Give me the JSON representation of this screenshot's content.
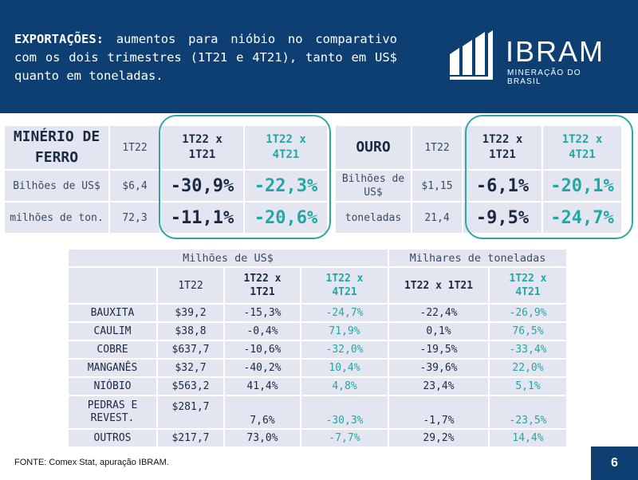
{
  "header": {
    "title_bold": "EXPORTAÇÕES:",
    "title_text": " aumentos para nióbio no comparativo com os dois trimestres (1T21 e 4T21), tanto em US$ quanto em toneladas."
  },
  "logo": {
    "name": "IBRAM",
    "subtitle": "MINERAÇÃO DO BRASIL"
  },
  "iron": {
    "title": "MINÉRIO DE FERRO",
    "col_period": "1T22",
    "col_vs1": "1T22 x 1T21",
    "col_vs2": "1T22 x 4T21",
    "rows": [
      {
        "label": "Bilhões de US$",
        "value": "$6,4",
        "vs1": "-30,9%",
        "vs2": "-22,3%"
      },
      {
        "label": "milhões de ton.",
        "value": "72,3",
        "vs1": "-11,1%",
        "vs2": "-20,6%"
      }
    ]
  },
  "gold": {
    "title": "OURO",
    "col_period": "1T22",
    "col_vs1": "1T22 x 1T21",
    "col_vs2": "1T22 x 4T21",
    "rows": [
      {
        "label": "Bilhões de US$",
        "value": "$1,15",
        "vs1": "-6,1%",
        "vs2": "-20,1%"
      },
      {
        "label": "toneladas",
        "value": "21,4",
        "vs1": "-9,5%",
        "vs2": "-24,7%"
      }
    ]
  },
  "details": {
    "group_usd": "Milhões de US$",
    "group_ton": "Milhares de toneladas",
    "col_period": "1T22",
    "col_usd_vs1": "1T22 x 1T21",
    "col_usd_vs2": "1T22 x 4T21",
    "col_ton_vs1": "1T22 x 1T21",
    "col_ton_vs2": "1T22 x 4T21",
    "rows": [
      {
        "name": "BAUXITA",
        "value": "$39,2",
        "usd_vs1": "-15,3%",
        "usd_vs2": "-24,7%",
        "ton_vs1": "-22,4%",
        "ton_vs2": "-26,9%"
      },
      {
        "name": "CAULIM",
        "value": "$38,8",
        "usd_vs1": "-0,4%",
        "usd_vs2": "71,9%",
        "ton_vs1": "0,1%",
        "ton_vs2": "76,5%"
      },
      {
        "name": "COBRE",
        "value": "$637,7",
        "usd_vs1": "-10,6%",
        "usd_vs2": "-32,0%",
        "ton_vs1": "-19,5%",
        "ton_vs2": "-33,4%"
      },
      {
        "name": "MANGANÊS",
        "value": "$32,7",
        "usd_vs1": "-40,2%",
        "usd_vs2": "10,4%",
        "ton_vs1": "-39,6%",
        "ton_vs2": "22,0%"
      },
      {
        "name": "NIÓBIO",
        "value": "$563,2",
        "usd_vs1": "41,4%",
        "usd_vs2": "4,8%",
        "ton_vs1": "23,4%",
        "ton_vs2": "5,1%"
      },
      {
        "name": "PEDRAS E REVEST.",
        "value": "$281,7",
        "usd_vs1": "7,6%",
        "usd_vs2": "-30,3%",
        "ton_vs1": "-1,7%",
        "ton_vs2": "-23,5%"
      },
      {
        "name": "OUTROS",
        "value": "$217,7",
        "usd_vs1": "73,0%",
        "usd_vs2": "-7,7%",
        "ton_vs1": "29,2%",
        "ton_vs2": "14,4%"
      }
    ]
  },
  "footer": {
    "source": "FONTE: Comex Stat, apuração IBRAM.",
    "page_number": "6"
  },
  "colors": {
    "header_bg": "#0e3f72",
    "teal_accent": "#22a7a2",
    "cell_shade": "#e3e6f1"
  }
}
